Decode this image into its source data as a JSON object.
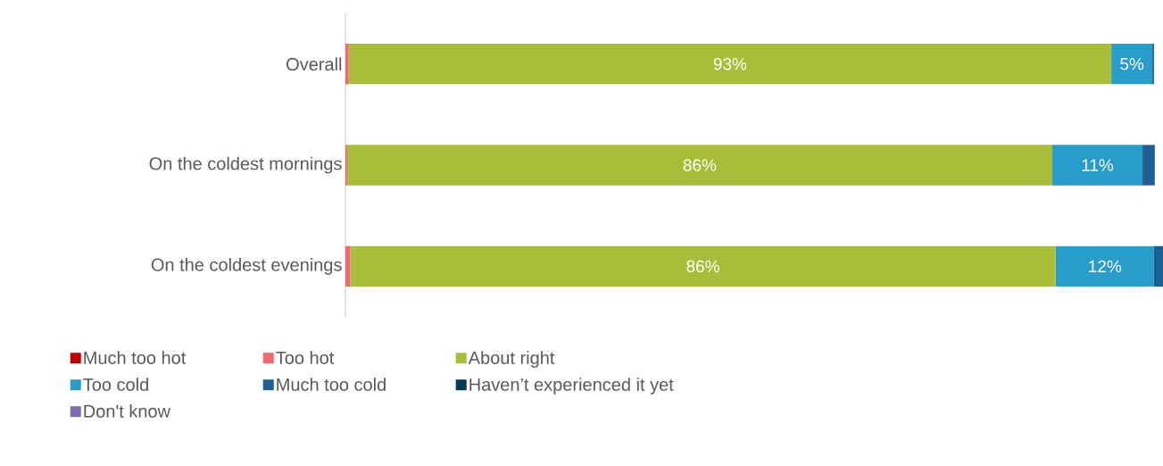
{
  "chart_data": {
    "type": "bar",
    "orientation": "horizontal",
    "stacked": true,
    "categories": [
      "Overall",
      "On the coldest mornings",
      "On the coldest evenings"
    ],
    "series": [
      {
        "name": "Much too hot",
        "color": "#c00000",
        "values": [
          0,
          0,
          0
        ]
      },
      {
        "name": "Too hot",
        "color": "#f4676e",
        "values": [
          0.4,
          0.2,
          0.6
        ]
      },
      {
        "name": "About right",
        "color": "#a9bd38",
        "values": [
          93,
          86,
          86
        ],
        "value_labels": [
          "93%",
          "86%",
          "86%"
        ]
      },
      {
        "name": "Too cold",
        "color": "#289dcc",
        "values": [
          5,
          11,
          12
        ],
        "value_labels": [
          "5%",
          "11%",
          "12%"
        ]
      },
      {
        "name": "Much too cold",
        "color": "#1f5f95",
        "values": [
          0.2,
          1.5,
          1.1
        ]
      },
      {
        "name": "Haven’t experienced it yet",
        "color": "#003a57",
        "values": [
          0,
          0,
          0
        ]
      },
      {
        "name": "Don't know",
        "color": "#7f6ab0",
        "values": [
          0,
          0,
          0
        ]
      }
    ],
    "legend": "bottom"
  }
}
